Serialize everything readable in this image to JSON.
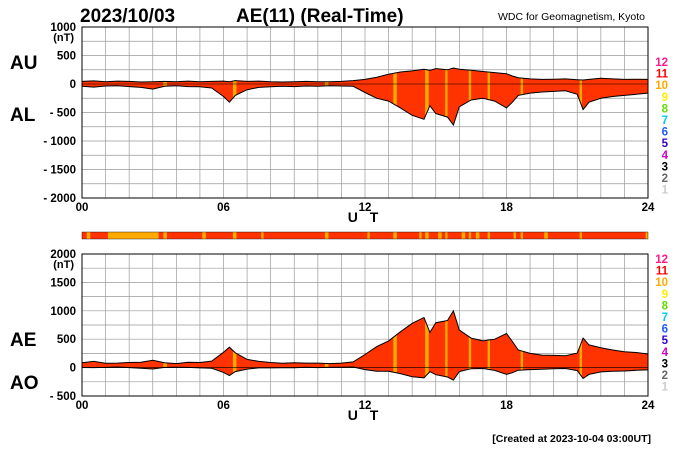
{
  "header": {
    "date": "2023/10/03",
    "title": "AE(11) (Real-Time)",
    "org": "WDC for Geomagnetism, Kyoto"
  },
  "footer": {
    "created": "[Created at 2023-10-04 03:00UT]"
  },
  "colors": {
    "fill": "#ff3300",
    "alt_fill": "#ffaa00",
    "line": "#000000",
    "grid": "#9a9a9a",
    "legend": [
      "#ff1a8c",
      "#ff0000",
      "#ffaa00",
      "#ffee00",
      "#66dd00",
      "#00ccee",
      "#1e5cff",
      "#3300cc",
      "#cc00cc",
      "#000000",
      "#666666",
      "#cccccc"
    ]
  },
  "legend_labels": [
    "12",
    "11",
    "10",
    "9",
    "8",
    "7",
    "6",
    "5",
    "4",
    "3",
    "2",
    "1"
  ],
  "chart_data": [
    {
      "type": "area",
      "id": "au_al",
      "left_labels": [
        "AU",
        "AL"
      ],
      "ylabel_unit": "(nT)",
      "xlabel": "U T",
      "xlim": [
        0,
        24
      ],
      "x_ticks": [
        "00",
        "06",
        "12",
        "18",
        "24"
      ],
      "ylim": [
        -2000,
        1000
      ],
      "y_ticks": [
        "1000",
        "500",
        "0",
        "- 500",
        "- 1000",
        "- 1500",
        "- 2000"
      ],
      "grid": true,
      "x": [
        0,
        0.5,
        1,
        1.5,
        2,
        2.5,
        3,
        3.5,
        4,
        4.5,
        5,
        5.5,
        6,
        6.25,
        6.5,
        7,
        7.5,
        8,
        8.5,
        9,
        9.5,
        10,
        10.5,
        11,
        11.5,
        12,
        12.5,
        13,
        13.5,
        14,
        14.5,
        14.75,
        15,
        15.5,
        15.75,
        16,
        16.5,
        17,
        17.5,
        18,
        18.25,
        18.5,
        19,
        19.5,
        20,
        20.5,
        21,
        21.25,
        21.5,
        22,
        22.5,
        23,
        23.5,
        24
      ],
      "series": [
        {
          "name": "AU",
          "values": [
            45,
            55,
            40,
            50,
            45,
            35,
            40,
            45,
            40,
            50,
            40,
            45,
            50,
            40,
            60,
            45,
            50,
            40,
            35,
            40,
            45,
            40,
            40,
            45,
            60,
            80,
            120,
            170,
            210,
            230,
            260,
            240,
            270,
            250,
            280,
            260,
            240,
            220,
            200,
            180,
            140,
            110,
            90,
            80,
            85,
            90,
            75,
            70,
            80,
            100,
            90,
            80,
            85,
            80
          ]
        },
        {
          "name": "AL",
          "values": [
            -40,
            -55,
            -35,
            -30,
            -45,
            -60,
            -90,
            -40,
            -30,
            -45,
            -50,
            -70,
            -220,
            -320,
            -200,
            -100,
            -60,
            -50,
            -40,
            -45,
            -35,
            -40,
            -30,
            -35,
            -40,
            -150,
            -250,
            -300,
            -420,
            -550,
            -620,
            -380,
            -520,
            -580,
            -720,
            -400,
            -280,
            -250,
            -300,
            -420,
            -320,
            -200,
            -160,
            -140,
            -130,
            -120,
            -180,
            -450,
            -320,
            -250,
            -220,
            -200,
            -180,
            -160
          ]
        }
      ]
    },
    {
      "type": "area",
      "id": "ae_ao",
      "left_labels": [
        "AE",
        "AO"
      ],
      "ylabel_unit": "(nT)",
      "xlabel": "U T",
      "xlim": [
        0,
        24
      ],
      "x_ticks": [
        "00",
        "06",
        "12",
        "18",
        "24"
      ],
      "ylim": [
        -500,
        2000
      ],
      "y_ticks": [
        "2000",
        "1500",
        "1000",
        "500",
        "0",
        "- 500"
      ],
      "grid": true,
      "x": [
        0,
        0.5,
        1,
        1.5,
        2,
        2.5,
        3,
        3.5,
        4,
        4.5,
        5,
        5.5,
        6,
        6.25,
        6.5,
        7,
        7.5,
        8,
        8.5,
        9,
        9.5,
        10,
        10.5,
        11,
        11.5,
        12,
        12.5,
        13,
        13.5,
        14,
        14.5,
        14.75,
        15,
        15.5,
        15.75,
        16,
        16.5,
        17,
        17.5,
        18,
        18.25,
        18.5,
        19,
        19.5,
        20,
        20.5,
        21,
        21.25,
        21.5,
        22,
        22.5,
        23,
        23.5,
        24
      ],
      "series": [
        {
          "name": "AE",
          "values": [
            85,
            110,
            75,
            80,
            90,
            95,
            130,
            85,
            70,
            95,
            90,
            115,
            270,
            360,
            260,
            145,
            110,
            90,
            75,
            85,
            80,
            80,
            70,
            80,
            100,
            230,
            370,
            470,
            630,
            780,
            880,
            620,
            790,
            830,
            1000,
            660,
            520,
            470,
            500,
            600,
            460,
            310,
            250,
            220,
            215,
            210,
            255,
            520,
            400,
            350,
            310,
            280,
            265,
            240
          ]
        },
        {
          "name": "AO",
          "values": [
            2,
            0,
            3,
            10,
            0,
            -12,
            -25,
            3,
            5,
            3,
            -5,
            -12,
            -85,
            -140,
            -70,
            -27,
            -5,
            -5,
            -2,
            -3,
            5,
            0,
            5,
            5,
            10,
            -35,
            -65,
            -65,
            -105,
            -160,
            -180,
            -70,
            -125,
            -165,
            -220,
            -70,
            -20,
            -15,
            -50,
            -120,
            -90,
            -45,
            -35,
            -30,
            -22,
            -15,
            -52,
            -190,
            -120,
            -75,
            -65,
            -60,
            -48,
            -40
          ]
        }
      ]
    }
  ],
  "station_bar": {
    "colors": [
      "#ff3300",
      "#ffaa00",
      "#ff3300",
      "#ffaa00",
      "#ff3300",
      "#ffaa00",
      "#ff3300",
      "#ffaa00",
      "#ff3300",
      "#ffaa00",
      "#ff3300",
      "#ffaa00",
      "#ff3300",
      "#ffaa00",
      "#ff3300",
      "#ffaa00",
      "#ff3300",
      "#ffaa00",
      "#ff3300",
      "#ffaa00",
      "#ff3300",
      "#ffaa00",
      "#ff3300",
      "#ffaa00",
      "#ff3300",
      "#ffaa00",
      "#ff3300",
      "#ffaa00",
      "#ff3300",
      "#ffaa00",
      "#ff3300",
      "#ffaa00",
      "#ff3300",
      "#ffaa00",
      "#ff3300",
      "#ffaa00",
      "#ff3300",
      "#ffaa00",
      "#ff3300",
      "#ffaa00",
      "#ff3300",
      "#ffaa00",
      "#ff3300"
    ],
    "breaks": [
      0.2,
      0.35,
      1.1,
      3.25,
      3.45,
      3.6,
      5.1,
      5.25,
      6.4,
      6.55,
      7.6,
      7.7,
      10.3,
      10.45,
      12.1,
      12.2,
      13.2,
      13.35,
      14.3,
      14.4,
      14.55,
      14.7,
      15.1,
      15.25,
      15.4,
      15.5,
      16.1,
      16.25,
      16.4,
      16.5,
      16.7,
      16.85,
      17.2,
      17.3,
      18.3,
      18.4,
      18.6,
      18.7,
      19.6,
      19.75,
      21.1,
      21.2,
      23.9,
      24
    ]
  }
}
